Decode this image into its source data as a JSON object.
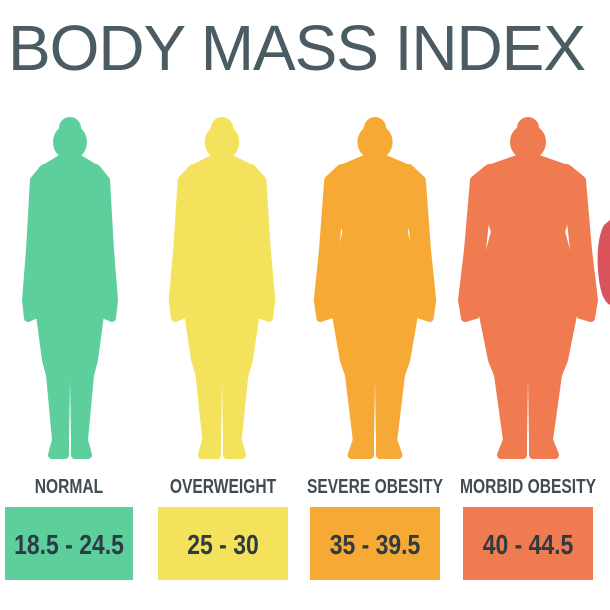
{
  "title": "BODY MASS INDEX",
  "categories": [
    {
      "label": "NORMAL",
      "range": "18.5 - 24.5",
      "color": "#5dcf9d"
    },
    {
      "label": "OVERWEIGHT",
      "range": "25 - 30",
      "color": "#f4e25c"
    },
    {
      "label": "SEVERE OBESITY",
      "range": "35 - 39.5",
      "color": "#f6a934"
    },
    {
      "label": "MORBID OBESITY",
      "range": "40 - 44.5",
      "color": "#f07b50"
    }
  ]
}
